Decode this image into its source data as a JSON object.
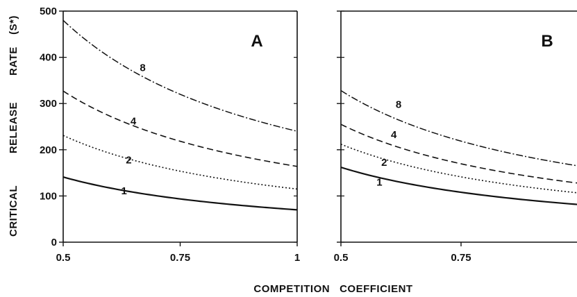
{
  "chart_data": [
    {
      "type": "line",
      "panel_label": "A",
      "ylabel": "CRITICAL RELEASE RATE (S*)",
      "ylabel_words": [
        "CRITICAL",
        "RELEASE",
        "RATE",
        "(S*)"
      ],
      "xlabel": "",
      "xlim": [
        0.5,
        1
      ],
      "ylim": [
        0,
        500
      ],
      "xticks": [
        "0.5",
        "0.75",
        "1"
      ],
      "yticks": [
        "0",
        "100",
        "200",
        "300",
        "400",
        "500"
      ],
      "grid": false,
      "series": [
        {
          "name": "8",
          "style": "dashdot",
          "x": [
            0.5,
            0.75,
            1
          ],
          "y": [
            480,
            320,
            240
          ]
        },
        {
          "name": "4",
          "style": "dashed",
          "x": [
            0.5,
            0.75,
            1
          ],
          "y": [
            327,
            218,
            164
          ]
        },
        {
          "name": "2",
          "style": "dotted",
          "x": [
            0.5,
            0.75,
            1
          ],
          "y": [
            231,
            154,
            115
          ]
        },
        {
          "name": "1",
          "style": "solid",
          "x": [
            0.5,
            0.75,
            1
          ],
          "y": [
            141,
            94,
            70
          ]
        }
      ],
      "curve_label_positions": [
        {
          "name": "8",
          "x": 0.67,
          "y": 378
        },
        {
          "name": "4",
          "x": 0.65,
          "y": 262
        },
        {
          "name": "2",
          "x": 0.64,
          "y": 178
        },
        {
          "name": "1",
          "x": 0.63,
          "y": 111
        }
      ]
    },
    {
      "type": "line",
      "panel_label": "B",
      "xlabel": "",
      "ylabel": "",
      "xlim": [
        0.5,
        1
      ],
      "ylim": [
        0,
        500
      ],
      "xticks": [
        "0.5",
        "0.75"
      ],
      "yticks": [],
      "grid": false,
      "series": [
        {
          "name": "8",
          "style": "dashdot",
          "x": [
            0.5,
            0.75,
            1
          ],
          "y": [
            328,
            219,
            164
          ]
        },
        {
          "name": "4",
          "style": "dashed",
          "x": [
            0.5,
            0.75,
            1
          ],
          "y": [
            255,
            170,
            127
          ]
        },
        {
          "name": "2",
          "style": "dotted",
          "x": [
            0.5,
            0.75,
            1
          ],
          "y": [
            212,
            141,
            106
          ]
        },
        {
          "name": "1",
          "style": "solid",
          "x": [
            0.5,
            0.75,
            1
          ],
          "y": [
            162,
            108,
            81
          ]
        }
      ],
      "curve_label_positions": [
        {
          "name": "8",
          "x": 0.62,
          "y": 298
        },
        {
          "name": "4",
          "x": 0.61,
          "y": 233
        },
        {
          "name": "2",
          "x": 0.59,
          "y": 173
        },
        {
          "name": "1",
          "x": 0.58,
          "y": 130
        }
      ]
    }
  ],
  "shared_xlabel": "COMPETITION   COEFFICIENT"
}
